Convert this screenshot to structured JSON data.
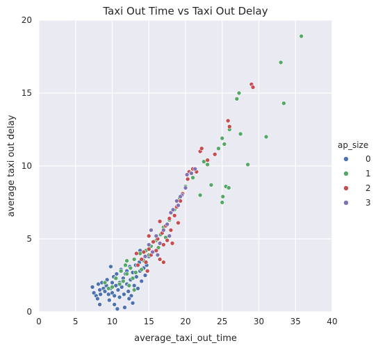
{
  "colors": {
    "plot_bg": "#eaeaf2",
    "grid": "#ffffff",
    "series_0": "#4c72b0",
    "series_1": "#55a868",
    "series_2": "#c44e52",
    "series_3": "#8172b2"
  },
  "chart_data": {
    "type": "scatter",
    "title": "Taxi Out Time vs Taxi Out Delay",
    "xlabel": "average_taxi_out_time",
    "ylabel": "average taxi out delay",
    "xlim": [
      0,
      40
    ],
    "ylim": [
      0,
      20
    ],
    "x_ticks": [
      "0",
      "5",
      "10",
      "15",
      "20",
      "25",
      "30",
      "35",
      "40"
    ],
    "y_ticks": [
      "0",
      "5",
      "10",
      "15",
      "20"
    ],
    "grid": true,
    "legend": {
      "title": "ap_size",
      "placement": "right",
      "entries": [
        "0",
        "1",
        "2",
        "3"
      ]
    },
    "series": [
      {
        "name": "0",
        "points": [
          [
            7.3,
            1.7
          ],
          [
            7.5,
            1.3
          ],
          [
            7.8,
            1.1
          ],
          [
            8.0,
            0.9
          ],
          [
            8.1,
            1.9
          ],
          [
            8.3,
            1.5
          ],
          [
            8.4,
            1.2
          ],
          [
            8.6,
            2.0
          ],
          [
            8.8,
            1.6
          ],
          [
            9.0,
            1.4
          ],
          [
            9.2,
            1.8
          ],
          [
            9.3,
            2.2
          ],
          [
            9.5,
            1.2
          ],
          [
            9.6,
            0.8
          ],
          [
            9.8,
            1.6
          ],
          [
            10.0,
            2.0
          ],
          [
            10.0,
            1.3
          ],
          [
            10.2,
            2.4
          ],
          [
            10.3,
            1.1
          ],
          [
            10.5,
            1.8
          ],
          [
            10.6,
            2.6
          ],
          [
            10.8,
            1.5
          ],
          [
            11.0,
            2.0
          ],
          [
            11.0,
            1.0
          ],
          [
            11.2,
            2.9
          ],
          [
            11.3,
            1.7
          ],
          [
            11.5,
            2.3
          ],
          [
            11.6,
            1.2
          ],
          [
            11.8,
            2.6
          ],
          [
            12.0,
            1.9
          ],
          [
            12.0,
            2.8
          ],
          [
            12.2,
            1.4
          ],
          [
            12.4,
            3.1
          ],
          [
            12.5,
            2.2
          ],
          [
            12.6,
            1.1
          ],
          [
            12.8,
            2.7
          ],
          [
            13.0,
            1.8
          ],
          [
            13.2,
            3.2
          ],
          [
            13.3,
            2.4
          ],
          [
            13.5,
            1.6
          ],
          [
            13.7,
            3.4
          ],
          [
            13.8,
            2.8
          ],
          [
            14.0,
            2.1
          ],
          [
            14.2,
            3.6
          ],
          [
            14.3,
            3.0
          ],
          [
            14.5,
            2.5
          ],
          [
            14.7,
            3.2
          ],
          [
            15.0,
            3.8
          ],
          [
            12.8,
            0.6
          ],
          [
            11.7,
            0.3
          ],
          [
            10.3,
            0.5
          ],
          [
            8.3,
            0.5
          ],
          [
            9.8,
            3.1
          ],
          [
            12.3,
            0.9
          ],
          [
            13.8,
            4.2
          ],
          [
            10.7,
            0.2
          ]
        ]
      },
      {
        "name": "1",
        "points": [
          [
            9.0,
            2.0
          ],
          [
            9.5,
            1.6
          ],
          [
            10.0,
            1.7
          ],
          [
            10.5,
            2.3
          ],
          [
            11.0,
            1.9
          ],
          [
            11.2,
            2.8
          ],
          [
            11.5,
            2.1
          ],
          [
            12.0,
            2.6
          ],
          [
            12.0,
            3.5
          ],
          [
            12.3,
            1.8
          ],
          [
            12.5,
            3.0
          ],
          [
            12.8,
            2.3
          ],
          [
            13.0,
            3.6
          ],
          [
            13.2,
            2.7
          ],
          [
            13.5,
            3.2
          ],
          [
            13.8,
            4.0
          ],
          [
            14.0,
            2.9
          ],
          [
            14.3,
            3.5
          ],
          [
            14.6,
            4.2
          ],
          [
            15.0,
            3.9
          ],
          [
            15.3,
            4.5
          ],
          [
            15.6,
            4.1
          ],
          [
            16.0,
            4.9
          ],
          [
            16.3,
            4.4
          ],
          [
            16.6,
            5.3
          ],
          [
            17.0,
            5.8
          ],
          [
            17.3,
            5.1
          ],
          [
            17.8,
            6.3
          ],
          [
            18.5,
            7.0
          ],
          [
            19.2,
            7.8
          ],
          [
            20.0,
            8.6
          ],
          [
            21.0,
            9.2
          ],
          [
            22.5,
            10.3
          ],
          [
            23.0,
            10.1
          ],
          [
            24.5,
            11.2
          ],
          [
            25.0,
            11.9
          ],
          [
            25.3,
            11.5
          ],
          [
            26.0,
            12.5
          ],
          [
            27.0,
            14.6
          ],
          [
            27.3,
            15.0
          ],
          [
            27.5,
            12.2
          ],
          [
            31.0,
            12.0
          ],
          [
            33.0,
            17.1
          ],
          [
            33.4,
            14.3
          ],
          [
            35.8,
            18.9
          ],
          [
            23.5,
            8.7
          ],
          [
            25.5,
            8.6
          ],
          [
            25.9,
            8.5
          ],
          [
            25.0,
            7.5
          ],
          [
            25.1,
            7.9
          ],
          [
            28.5,
            10.1
          ],
          [
            22.0,
            8.0
          ],
          [
            13.0,
            1.5
          ],
          [
            11.8,
            3.2
          ]
        ]
      },
      {
        "name": "2",
        "points": [
          [
            13.5,
            3.2
          ],
          [
            14.0,
            3.6
          ],
          [
            14.3,
            4.1
          ],
          [
            14.6,
            3.4
          ],
          [
            15.0,
            4.3
          ],
          [
            15.3,
            3.9
          ],
          [
            15.6,
            4.8
          ],
          [
            16.0,
            4.2
          ],
          [
            16.2,
            5.0
          ],
          [
            16.5,
            3.6
          ],
          [
            16.8,
            5.4
          ],
          [
            17.0,
            4.6
          ],
          [
            17.3,
            5.9
          ],
          [
            17.5,
            4.9
          ],
          [
            17.8,
            6.4
          ],
          [
            18.0,
            5.6
          ],
          [
            18.5,
            6.6
          ],
          [
            18.8,
            7.2
          ],
          [
            19.0,
            6.1
          ],
          [
            19.3,
            7.6
          ],
          [
            19.6,
            8.1
          ],
          [
            20.0,
            8.5
          ],
          [
            20.3,
            9.1
          ],
          [
            20.5,
            9.6
          ],
          [
            21.0,
            9.8
          ],
          [
            21.5,
            9.6
          ],
          [
            22.0,
            11.0
          ],
          [
            22.2,
            11.2
          ],
          [
            23.0,
            10.4
          ],
          [
            24.0,
            10.8
          ],
          [
            25.8,
            13.1
          ],
          [
            26.0,
            12.7
          ],
          [
            29.0,
            15.6
          ],
          [
            29.2,
            15.4
          ],
          [
            17.0,
            3.4
          ],
          [
            14.8,
            2.8
          ],
          [
            13.3,
            4.0
          ],
          [
            15.0,
            5.2
          ],
          [
            18.2,
            4.7
          ],
          [
            16.5,
            6.2
          ]
        ]
      },
      {
        "name": "3",
        "points": [
          [
            14.5,
            3.8
          ],
          [
            15.0,
            4.6
          ],
          [
            15.5,
            4.1
          ],
          [
            16.0,
            5.2
          ],
          [
            16.5,
            4.7
          ],
          [
            17.0,
            5.6
          ],
          [
            17.5,
            6.0
          ],
          [
            18.0,
            6.8
          ],
          [
            18.3,
            7.0
          ],
          [
            18.8,
            7.6
          ],
          [
            19.0,
            7.3
          ],
          [
            19.5,
            8.0
          ],
          [
            20.0,
            8.5
          ],
          [
            20.2,
            9.4
          ],
          [
            20.8,
            9.5
          ],
          [
            16.2,
            3.9
          ],
          [
            17.8,
            5.2
          ],
          [
            15.3,
            5.6
          ],
          [
            19.3,
            7.9
          ],
          [
            21.3,
            9.8
          ]
        ]
      }
    ]
  }
}
